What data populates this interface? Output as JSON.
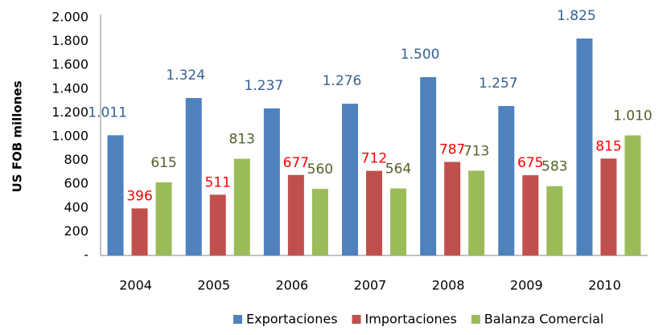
{
  "chart_data": {
    "type": "bar",
    "y_axis_label": "US FOB millones",
    "categories": [
      "2004",
      "2005",
      "2006",
      "2007",
      "2008",
      "2009",
      "2010"
    ],
    "series": [
      {
        "name": "Exportaciones",
        "color": "#4f81bd",
        "label_color": "#376092",
        "values": [
          1011,
          1324,
          1237,
          1276,
          1500,
          1257,
          1825
        ],
        "value_labels": [
          "1.011",
          "1.324",
          "1.237",
          "1.276",
          "1.500",
          "1.257",
          "1.825"
        ]
      },
      {
        "name": "Importaciones",
        "color": "#c0504d",
        "label_color": "#ff0000",
        "values": [
          396,
          511,
          677,
          712,
          787,
          675,
          815
        ],
        "value_labels": [
          "396",
          "511",
          "677",
          "712",
          "787",
          "675",
          "815"
        ]
      },
      {
        "name": "Balanza Comercial",
        "color": "#9bbb59",
        "label_color": "#4f6228",
        "values": [
          615,
          813,
          560,
          564,
          713,
          583,
          1010
        ],
        "value_labels": [
          "615",
          "813",
          "560",
          "564",
          "713",
          "583",
          "1.010"
        ]
      }
    ],
    "ylim": [
      0,
      2000
    ],
    "yticks": [
      {
        "value": 0,
        "label": "-"
      },
      200,
      400,
      600,
      800,
      {
        "value": 1000,
        "label": "1.000"
      },
      {
        "value": 1200,
        "label": "1.200"
      },
      {
        "value": 1400,
        "label": "1.400"
      },
      {
        "value": 1600,
        "label": "1.600"
      },
      {
        "value": 1800,
        "label": "1.800"
      },
      {
        "value": 2000,
        "label": "2.000"
      }
    ],
    "grid": false,
    "legend": "bottom"
  }
}
